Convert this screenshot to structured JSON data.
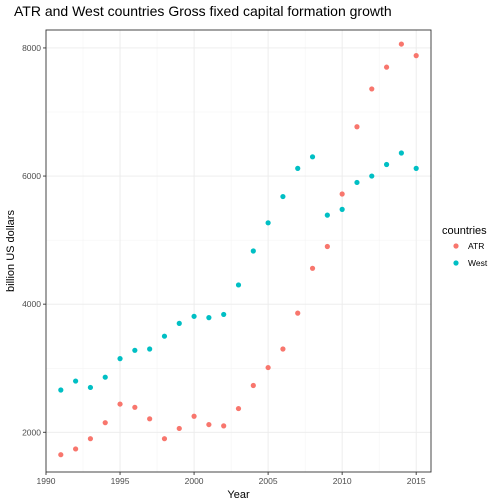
{
  "chart_data": {
    "type": "scatter",
    "title": "ATR and West countries Gross fixed capital formation growth",
    "xlabel": "Year",
    "ylabel": "billion US dollars",
    "xlim": [
      1990,
      2016
    ],
    "ylim": [
      1380,
      8280
    ],
    "x_ticks": [
      "1990",
      "1995",
      "2000",
      "2005",
      "2010",
      "2015"
    ],
    "y_ticks": [
      "2000",
      "4000",
      "6000",
      "8000"
    ],
    "grid": true,
    "legend": {
      "title": "countries",
      "position": "right"
    },
    "series": [
      {
        "name": "ATR",
        "color": "#F8766D",
        "points": [
          {
            "x": 1991,
            "y": 1650
          },
          {
            "x": 1992,
            "y": 1740
          },
          {
            "x": 1993,
            "y": 1900
          },
          {
            "x": 1994,
            "y": 2150
          },
          {
            "x": 1995,
            "y": 2440
          },
          {
            "x": 1996,
            "y": 2390
          },
          {
            "x": 1997,
            "y": 2210
          },
          {
            "x": 1998,
            "y": 1900
          },
          {
            "x": 1999,
            "y": 2060
          },
          {
            "x": 2000,
            "y": 2250
          },
          {
            "x": 2001,
            "y": 2120
          },
          {
            "x": 2002,
            "y": 2100
          },
          {
            "x": 2003,
            "y": 2370
          },
          {
            "x": 2004,
            "y": 2730
          },
          {
            "x": 2005,
            "y": 3010
          },
          {
            "x": 2006,
            "y": 3300
          },
          {
            "x": 2007,
            "y": 3860
          },
          {
            "x": 2008,
            "y": 4560
          },
          {
            "x": 2009,
            "y": 4900
          },
          {
            "x": 2010,
            "y": 5720
          },
          {
            "x": 2011,
            "y": 6770
          },
          {
            "x": 2012,
            "y": 7360
          },
          {
            "x": 2013,
            "y": 7700
          },
          {
            "x": 2014,
            "y": 8060
          },
          {
            "x": 2015,
            "y": 7880
          }
        ]
      },
      {
        "name": "West",
        "color": "#00BFC4",
        "points": [
          {
            "x": 1991,
            "y": 2660
          },
          {
            "x": 1992,
            "y": 2800
          },
          {
            "x": 1993,
            "y": 2700
          },
          {
            "x": 1994,
            "y": 2860
          },
          {
            "x": 1995,
            "y": 3150
          },
          {
            "x": 1996,
            "y": 3280
          },
          {
            "x": 1997,
            "y": 3300
          },
          {
            "x": 1998,
            "y": 3500
          },
          {
            "x": 1999,
            "y": 3700
          },
          {
            "x": 2000,
            "y": 3810
          },
          {
            "x": 2001,
            "y": 3790
          },
          {
            "x": 2002,
            "y": 3840
          },
          {
            "x": 2003,
            "y": 4300
          },
          {
            "x": 2004,
            "y": 4830
          },
          {
            "x": 2005,
            "y": 5270
          },
          {
            "x": 2006,
            "y": 5680
          },
          {
            "x": 2007,
            "y": 6120
          },
          {
            "x": 2008,
            "y": 6300
          },
          {
            "x": 2009,
            "y": 5390
          },
          {
            "x": 2010,
            "y": 5480
          },
          {
            "x": 2011,
            "y": 5900
          },
          {
            "x": 2012,
            "y": 6000
          },
          {
            "x": 2013,
            "y": 6180
          },
          {
            "x": 2014,
            "y": 6360
          },
          {
            "x": 2015,
            "y": 6120
          }
        ]
      }
    ]
  }
}
